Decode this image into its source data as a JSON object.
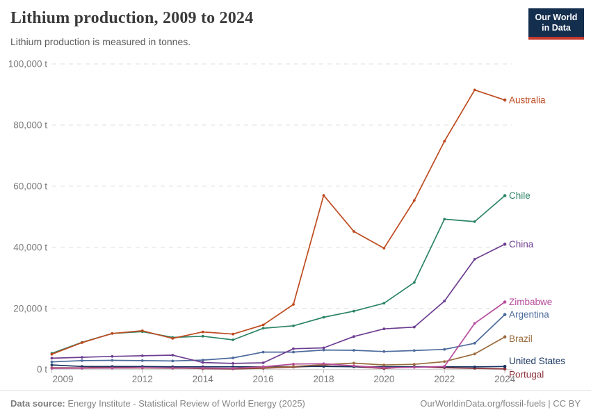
{
  "header": {
    "title": "Lithium production, 2009 to 2024",
    "subtitle": "Lithium production is measured in tonnes.",
    "logo": {
      "line1": "Our World",
      "line2": "in Data",
      "bg": "#142e4e",
      "accent": "#c4392e"
    }
  },
  "footer": {
    "source_label": "Data source:",
    "source_text": " Energy Institute - Statistical Review of World Energy (2025)",
    "link": "OurWorldinData.org/fossil-fuels | CC BY"
  },
  "chart_data": {
    "type": "line",
    "title": "Lithium production, 2009 to 2024",
    "ylabel": "tonnes",
    "unit": "t",
    "grid": true,
    "legend_position": "right-end-labels",
    "xlim": [
      2009,
      2024
    ],
    "ylim": [
      0,
      100000
    ],
    "x": [
      2009,
      2010,
      2011,
      2012,
      2013,
      2014,
      2015,
      2016,
      2017,
      2018,
      2019,
      2020,
      2021,
      2022,
      2023,
      2024
    ],
    "x_ticks": [
      2009,
      2012,
      2014,
      2016,
      2018,
      2020,
      2022,
      2024
    ],
    "y_ticks": [
      0,
      20000,
      40000,
      60000,
      80000,
      100000
    ],
    "series": [
      {
        "name": "Australia",
        "color": "#bd4b20",
        "label_dy": 0,
        "values": [
          5000,
          8800,
          11800,
          12700,
          10200,
          12300,
          11600,
          14600,
          21300,
          57000,
          45200,
          39700,
          55300,
          74700,
          91500,
          88200
        ]
      },
      {
        "name": "Chile",
        "color": "#2c8465",
        "label_dy": 0,
        "values": [
          5300,
          8900,
          11800,
          12400,
          10500,
          10900,
          9700,
          13500,
          14300,
          17100,
          19100,
          21700,
          28500,
          49200,
          48400,
          56900
        ]
      },
      {
        "name": "China",
        "color": "#6d3e91",
        "label_dy": 0,
        "values": [
          3700,
          4000,
          4300,
          4500,
          4700,
          2300,
          2000,
          2200,
          6800,
          7100,
          10800,
          13300,
          13900,
          22400,
          36100,
          41000
        ]
      },
      {
        "name": "Zimbabwe",
        "color": "#b84d9c",
        "label_dy": 0,
        "values": [
          400,
          470,
          500,
          600,
          500,
          500,
          400,
          900,
          1800,
          1900,
          1200,
          600,
          710,
          1030,
          15100,
          22100
        ]
      },
      {
        "name": "Argentina",
        "color": "#4c6a9c",
        "label_dy": 0,
        "values": [
          2500,
          2900,
          3000,
          2900,
          2800,
          3100,
          3800,
          5700,
          5700,
          6400,
          6300,
          5900,
          6200,
          6600,
          8600,
          18000
        ]
      },
      {
        "name": "Brazil",
        "color": "#9a6b3c",
        "label_dy": 3,
        "values": [
          400,
          420,
          480,
          500,
          400,
          400,
          400,
          600,
          1000,
          1600,
          2100,
          1500,
          1700,
          2600,
          5100,
          10700
        ]
      },
      {
        "name": "United States",
        "color": "#17345f",
        "label_dy": -8,
        "values": [
          1500,
          1000,
          1000,
          1000,
          900,
          900,
          900,
          900,
          1000,
          1000,
          900,
          900,
          900,
          900,
          870,
          1000
        ]
      },
      {
        "name": "Portugal",
        "color": "#8c3039",
        "label_dy": 8,
        "values": [
          570,
          560,
          820,
          560,
          570,
          300,
          200,
          400,
          800,
          1200,
          900,
          350,
          900,
          600,
          380,
          200
        ]
      }
    ]
  }
}
